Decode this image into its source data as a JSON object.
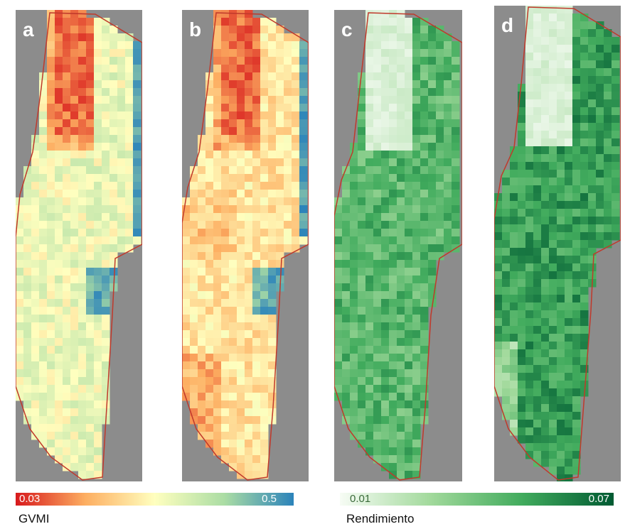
{
  "panels": [
    {
      "label": "a",
      "colormap": "gvmi",
      "mode": "gvmi_a"
    },
    {
      "label": "b",
      "colormap": "gvmi",
      "mode": "gvmi_b"
    },
    {
      "label": "c",
      "colormap": "yield",
      "mode": "yield_c"
    },
    {
      "label": "d",
      "colormap": "yield",
      "mode": "yield_d"
    }
  ],
  "legend_gvmi": {
    "title": "GVMI",
    "min": "0.03",
    "max": "0.5",
    "colors": [
      "#d7191c",
      "#fdae61",
      "#ffffbf",
      "#abdda4",
      "#2b83ba"
    ]
  },
  "legend_yield": {
    "title": "Rendimiento",
    "min": "0.01",
    "max": "0.07",
    "colors": [
      "#f7fcf5",
      "#a1d99b",
      "#41ab5d",
      "#005a32"
    ]
  },
  "colors": {
    "background": "#8c8c8c",
    "boundary": "#c0392b"
  }
}
